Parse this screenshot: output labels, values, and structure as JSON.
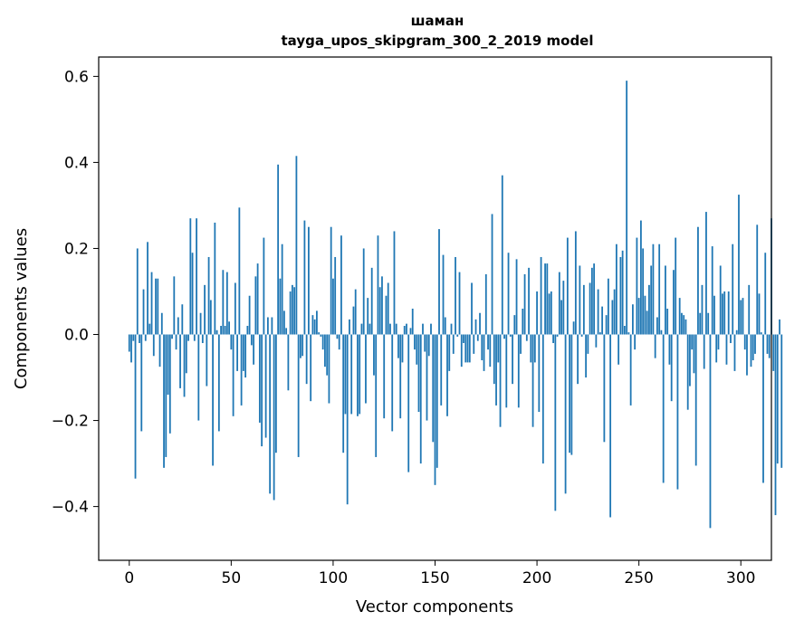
{
  "chart_data": {
    "type": "bar",
    "title": "шаман",
    "subtitle": "tayga_upos_skipgram_300_2_2019 model",
    "xlabel": "Vector components",
    "ylabel": "Components values",
    "xlim": [
      -15,
      315
    ],
    "ylim": [
      -0.525,
      0.645
    ],
    "xticks": [
      0,
      50,
      100,
      150,
      200,
      250,
      300
    ],
    "xtick_labels": [
      "0",
      "50",
      "100",
      "150",
      "200",
      "250",
      "300"
    ],
    "yticks": [
      -0.4,
      -0.2,
      0.0,
      0.2,
      0.4,
      0.6
    ],
    "ytick_labels": [
      "−0.4",
      "−0.2",
      "0.0",
      "0.2",
      "0.4",
      "0.6"
    ],
    "grid": false,
    "bar_color": "#1f77b4",
    "values": [
      -0.04,
      -0.065,
      -0.015,
      -0.335,
      0.2,
      -0.02,
      -0.225,
      0.105,
      -0.015,
      0.215,
      0.025,
      0.145,
      -0.05,
      0.13,
      0.13,
      -0.075,
      0.05,
      -0.31,
      -0.285,
      -0.14,
      -0.23,
      -0.01,
      0.135,
      -0.035,
      0.04,
      -0.125,
      0.07,
      -0.145,
      -0.09,
      -0.015,
      0.27,
      0.19,
      -0.015,
      0.27,
      -0.2,
      0.05,
      -0.02,
      0.115,
      -0.12,
      0.18,
      0.08,
      -0.305,
      0.26,
      0.01,
      -0.225,
      0.02,
      0.15,
      0.02,
      0.145,
      0.03,
      -0.035,
      -0.19,
      0.12,
      -0.085,
      0.295,
      -0.165,
      -0.085,
      -0.1,
      0.02,
      0.09,
      -0.025,
      -0.07,
      0.135,
      0.165,
      -0.205,
      -0.26,
      0.225,
      -0.24,
      0.04,
      -0.37,
      0.04,
      -0.385,
      -0.275,
      0.395,
      0.13,
      0.21,
      0.055,
      0.015,
      -0.13,
      0.1,
      0.115,
      0.11,
      0.415,
      -0.285,
      -0.055,
      -0.05,
      0.265,
      -0.115,
      0.25,
      -0.155,
      0.045,
      0.035,
      0.055,
      0.005,
      -0.005,
      -0.035,
      -0.075,
      -0.095,
      -0.16,
      0.25,
      0.13,
      0.18,
      -0.01,
      -0.035,
      0.23,
      -0.275,
      -0.185,
      -0.395,
      0.035,
      -0.185,
      0.065,
      0.105,
      -0.19,
      -0.185,
      0.025,
      0.2,
      -0.16,
      0.085,
      0.025,
      0.155,
      -0.095,
      -0.285,
      0.23,
      0.11,
      0.135,
      -0.195,
      0.09,
      0.12,
      0.025,
      -0.225,
      0.24,
      0.025,
      -0.055,
      -0.195,
      -0.065,
      0.02,
      0.025,
      -0.32,
      0.015,
      0.06,
      -0.035,
      -0.07,
      -0.18,
      -0.3,
      0.025,
      -0.04,
      -0.2,
      -0.05,
      0.025,
      -0.25,
      -0.35,
      -0.31,
      0.245,
      -0.165,
      0.185,
      0.04,
      -0.19,
      -0.085,
      0.025,
      -0.045,
      0.18,
      -0.005,
      0.145,
      -0.075,
      -0.02,
      -0.065,
      -0.065,
      -0.065,
      0.12,
      -0.045,
      0.035,
      -0.015,
      0.05,
      -0.06,
      -0.085,
      0.14,
      -0.035,
      -0.075,
      0.28,
      -0.115,
      -0.165,
      -0.065,
      -0.215,
      0.37,
      -0.01,
      -0.17,
      0.19,
      -0.005,
      -0.115,
      0.045,
      0.175,
      -0.17,
      -0.045,
      0.06,
      0.14,
      -0.015,
      0.155,
      -0.065,
      -0.215,
      -0.065,
      0.1,
      -0.18,
      0.18,
      -0.3,
      0.165,
      0.165,
      0.095,
      0.1,
      -0.02,
      -0.41,
      -0.005,
      0.145,
      0.08,
      0.125,
      -0.37,
      0.225,
      -0.275,
      -0.28,
      0.03,
      0.24,
      -0.115,
      0.16,
      -0.005,
      0.115,
      -0.1,
      -0.045,
      0.12,
      0.155,
      0.165,
      -0.03,
      0.105,
      0.005,
      0.065,
      -0.25,
      0.045,
      0.13,
      -0.425,
      0.08,
      0.105,
      0.21,
      -0.07,
      0.18,
      0.195,
      0.02,
      0.59,
      0.005,
      -0.165,
      0.07,
      -0.035,
      0.225,
      0.085,
      0.265,
      0.2,
      0.09,
      0.055,
      0.115,
      0.16,
      0.21,
      -0.055,
      0.04,
      0.21,
      0.01,
      -0.345,
      0.16,
      0.06,
      -0.07,
      -0.155,
      0.15,
      0.225,
      -0.36,
      0.085,
      0.05,
      0.045,
      0.035,
      -0.175,
      -0.12,
      -0.035,
      -0.09,
      -0.305,
      0.25,
      0.05,
      0.115,
      -0.08,
      0.285,
      0.05,
      -0.45,
      0.205,
      0.09,
      -0.065,
      -0.035,
      0.16,
      0.095,
      0.1,
      -0.07,
      0.1,
      -0.02,
      0.21,
      -0.085,
      0.01,
      0.325,
      0.08,
      0.085,
      -0.035,
      -0.095,
      0.115,
      -0.075,
      -0.06,
      -0.045,
      0.255,
      0.095,
      0.005,
      -0.345,
      0.19,
      -0.045,
      -0.055,
      0.27,
      -0.085,
      -0.42,
      -0.3,
      0.035,
      -0.31
    ]
  }
}
